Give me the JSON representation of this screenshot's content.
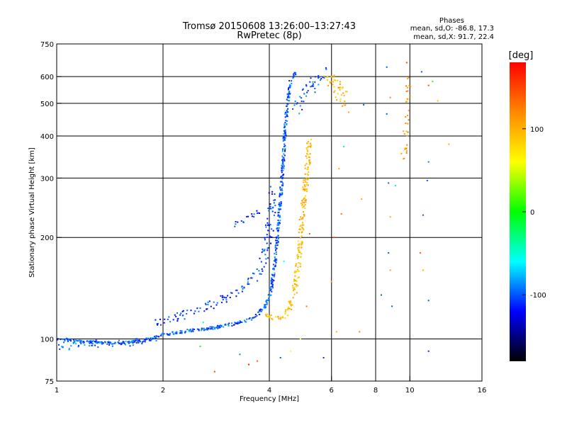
{
  "chart_data": {
    "type": "scatter",
    "title": "Tromsø 20150608 13:26:00–13:27:43",
    "subtitle": "RwPretec (8p)",
    "info": {
      "header": "Phases",
      "line1": "mean, sd,O:  -86.8, 17.3",
      "line2": "mean, sd,X:   91.7, 22.4"
    },
    "xlabel": "Frequency [MHz]",
    "ylabel": "Stationary phase Virtual Height [km]",
    "x_scale": "log",
    "y_scale": "log",
    "xlim": [
      1,
      16
    ],
    "ylim": [
      75,
      750
    ],
    "x_ticks": [
      1,
      2,
      4,
      6,
      8,
      10,
      16
    ],
    "y_ticks": [
      75,
      100,
      200,
      300,
      400,
      500,
      600,
      750
    ],
    "x_gridlines": [
      2,
      4,
      6,
      8,
      10
    ],
    "y_gridlines": [
      100,
      200,
      300,
      400,
      500,
      600
    ],
    "grid": true,
    "colorbar": {
      "label": "[deg]",
      "range": [
        -180,
        180
      ],
      "ticks": [
        100,
        0,
        -100
      ],
      "stops": [
        "#ff0000",
        "#ff8800",
        "#ffff00",
        "#00ff00",
        "#00ffff",
        "#0000ff",
        "#000000"
      ]
    },
    "traces": [
      {
        "kind": "curve",
        "phase": -100,
        "spread": 0.18,
        "density": 9,
        "points": [
          [
            1.0,
            100
          ],
          [
            1.2,
            98
          ],
          [
            1.5,
            97
          ],
          [
            1.8,
            99
          ],
          [
            2.0,
            103
          ],
          [
            2.4,
            106
          ],
          [
            2.8,
            108
          ],
          [
            3.2,
            111
          ],
          [
            3.6,
            115
          ],
          [
            3.9,
            125
          ],
          [
            4.05,
            140
          ],
          [
            4.15,
            170
          ],
          [
            4.25,
            220
          ],
          [
            4.35,
            300
          ],
          [
            4.42,
            400
          ],
          [
            4.5,
            500
          ],
          [
            4.6,
            590
          ],
          [
            4.75,
            615
          ]
        ]
      },
      {
        "kind": "curve",
        "phase": -110,
        "spread": 0.5,
        "density": 5,
        "points": [
          [
            1.9,
            112
          ],
          [
            2.3,
            118
          ],
          [
            2.7,
            125
          ],
          [
            3.0,
            132
          ],
          [
            3.3,
            138
          ],
          [
            3.6,
            150
          ],
          [
            3.8,
            165
          ],
          [
            3.95,
            190
          ],
          [
            4.05,
            230
          ],
          [
            4.1,
            280
          ]
        ]
      },
      {
        "kind": "curve",
        "phase": -95,
        "spread": 0.5,
        "density": 4,
        "points": [
          [
            1.0,
            95
          ],
          [
            1.3,
            97
          ],
          [
            1.6,
            96
          ],
          [
            1.9,
            101
          ]
        ]
      },
      {
        "kind": "curve",
        "phase": -105,
        "spread": 0.3,
        "density": 4,
        "points": [
          [
            3.2,
            218
          ],
          [
            3.4,
            225
          ],
          [
            3.6,
            232
          ],
          [
            3.75,
            240
          ]
        ]
      },
      {
        "kind": "curve",
        "phase": -100,
        "spread": 0.7,
        "density": 6,
        "points": [
          [
            4.7,
            480
          ],
          [
            5.0,
            520
          ],
          [
            5.3,
            560
          ],
          [
            5.6,
            600
          ],
          [
            5.8,
            620
          ]
        ]
      },
      {
        "kind": "curve",
        "phase": 95,
        "spread": 0.35,
        "density": 8,
        "points": [
          [
            3.9,
            118
          ],
          [
            4.2,
            115
          ],
          [
            4.4,
            118
          ],
          [
            4.6,
            125
          ],
          [
            4.75,
            145
          ],
          [
            4.85,
            175
          ],
          [
            4.95,
            220
          ],
          [
            5.05,
            280
          ],
          [
            5.15,
            340
          ],
          [
            5.2,
            390
          ]
        ]
      },
      {
        "kind": "curve",
        "phase": 100,
        "spread": 0.8,
        "density": 8,
        "points": [
          [
            5.8,
            580
          ],
          [
            6.0,
            600
          ],
          [
            6.2,
            560
          ],
          [
            6.4,
            520
          ],
          [
            6.5,
            490
          ]
        ]
      },
      {
        "kind": "curve",
        "phase": 110,
        "spread": 0.35,
        "density": 3,
        "points": [
          [
            9.6,
            340
          ],
          [
            9.7,
            400
          ],
          [
            9.8,
            470
          ],
          [
            9.85,
            520
          ],
          [
            9.9,
            600
          ]
        ]
      }
    ],
    "scatter": [
      {
        "x": 3.3,
        "y": 90,
        "phase": -90
      },
      {
        "x": 3.7,
        "y": 86,
        "phase": 140
      },
      {
        "x": 4.3,
        "y": 88,
        "phase": -100
      },
      {
        "x": 4.6,
        "y": 92,
        "phase": 60
      },
      {
        "x": 5.7,
        "y": 88,
        "phase": -110
      },
      {
        "x": 2.8,
        "y": 80,
        "phase": 150
      },
      {
        "x": 3.5,
        "y": 84,
        "phase": 170
      },
      {
        "x": 6.4,
        "y": 235,
        "phase": 130
      },
      {
        "x": 6.3,
        "y": 320,
        "phase": 100
      },
      {
        "x": 6.5,
        "y": 372,
        "phase": -30
      },
      {
        "x": 7.3,
        "y": 260,
        "phase": 100
      },
      {
        "x": 8.7,
        "y": 290,
        "phase": -100
      },
      {
        "x": 8.8,
        "y": 230,
        "phase": 100
      },
      {
        "x": 8.7,
        "y": 180,
        "phase": -100
      },
      {
        "x": 8.8,
        "y": 160,
        "phase": 110
      },
      {
        "x": 8.6,
        "y": 640,
        "phase": -100
      },
      {
        "x": 8.8,
        "y": 520,
        "phase": 120
      },
      {
        "x": 8.6,
        "y": 465,
        "phase": -100
      },
      {
        "x": 9.1,
        "y": 285,
        "phase": -40
      },
      {
        "x": 8.3,
        "y": 135,
        "phase": -100
      },
      {
        "x": 8.9,
        "y": 125,
        "phase": -100
      },
      {
        "x": 10.8,
        "y": 620,
        "phase": -100
      },
      {
        "x": 11.3,
        "y": 565,
        "phase": 150
      },
      {
        "x": 11.6,
        "y": 580,
        "phase": 10
      },
      {
        "x": 12.0,
        "y": 508,
        "phase": 90
      },
      {
        "x": 12.9,
        "y": 378,
        "phase": 100
      },
      {
        "x": 11.3,
        "y": 335,
        "phase": -90
      },
      {
        "x": 11.2,
        "y": 295,
        "phase": -100
      },
      {
        "x": 10.9,
        "y": 233,
        "phase": -100
      },
      {
        "x": 10.7,
        "y": 180,
        "phase": 140
      },
      {
        "x": 10.9,
        "y": 160,
        "phase": 100
      },
      {
        "x": 11.3,
        "y": 130,
        "phase": -100
      },
      {
        "x": 11.3,
        "y": 92,
        "phase": -110
      },
      {
        "x": 9.8,
        "y": 660,
        "phase": 150
      },
      {
        "x": 7.4,
        "y": 495,
        "phase": -100
      },
      {
        "x": 6.1,
        "y": 200,
        "phase": 150
      },
      {
        "x": 5.2,
        "y": 205,
        "phase": 140
      },
      {
        "x": 4.9,
        "y": 175,
        "phase": 40
      },
      {
        "x": 4.4,
        "y": 170,
        "phase": -60
      },
      {
        "x": 2.6,
        "y": 112,
        "phase": -50
      },
      {
        "x": 2.55,
        "y": 95,
        "phase": -10
      },
      {
        "x": 6.2,
        "y": 105,
        "phase": 100
      },
      {
        "x": 6.0,
        "y": 148,
        "phase": 110
      },
      {
        "x": 4.9,
        "y": 100,
        "phase": 60
      },
      {
        "x": 7.2,
        "y": 105,
        "phase": 120
      },
      {
        "x": 5.1,
        "y": 125,
        "phase": 130
      }
    ]
  }
}
